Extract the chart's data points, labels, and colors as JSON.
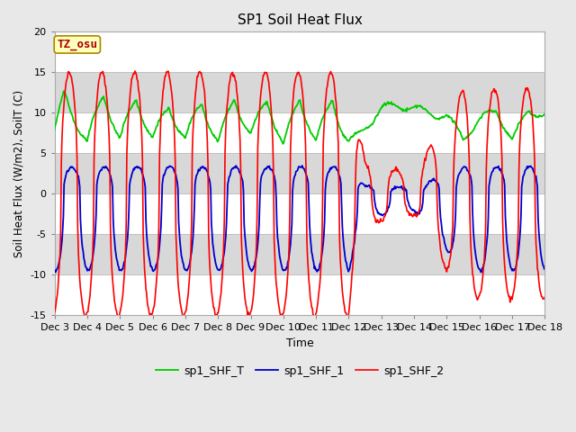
{
  "title": "SP1 Soil Heat Flux",
  "xlabel": "Time",
  "ylabel": "Soil Heat Flux (W/m2), SoilT (C)",
  "ylim": [
    -15,
    20
  ],
  "yticks": [
    -15,
    -10,
    -5,
    0,
    5,
    10,
    15,
    20
  ],
  "xtick_labels": [
    "Dec 3",
    "Dec 4",
    "Dec 5",
    "Dec 6",
    "Dec 7",
    "Dec 8",
    "Dec 9",
    "Dec 10",
    "Dec 11",
    "Dec 12",
    "Dec 13",
    "Dec 14",
    "Dec 15",
    "Dec 16",
    "Dec 17",
    "Dec 18"
  ],
  "color_shf2": "#ff0000",
  "color_shf1": "#0000cc",
  "color_shft": "#00cc00",
  "bg_color": "#e8e8e8",
  "plot_bg": "#ffffff",
  "band_color": "#d8d8d8",
  "annotation_text": "TZ_osu",
  "annotation_color": "#aa0000",
  "annotation_bg": "#ffffbb",
  "legend_labels": [
    "sp1_SHF_2",
    "sp1_SHF_1",
    "sp1_SHF_T"
  ],
  "figsize": [
    6.4,
    4.8
  ],
  "dpi": 100
}
